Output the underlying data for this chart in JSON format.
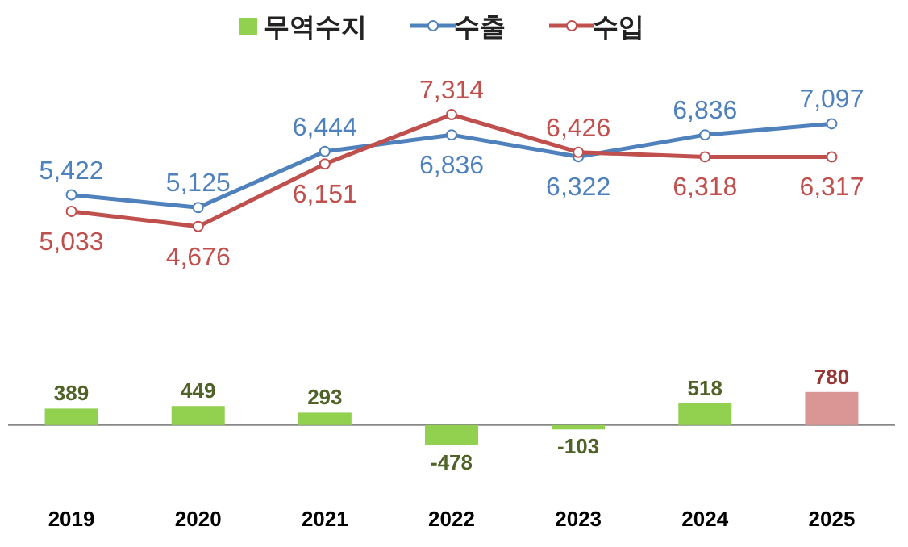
{
  "chart_data": {
    "type": "bar",
    "categories": [
      "2019",
      "2020",
      "2021",
      "2022",
      "2023",
      "2024",
      "2025"
    ],
    "series": [
      {
        "name": "무역수지",
        "color": "#92d050",
        "colors": [
          "#92d050",
          "#92d050",
          "#92d050",
          "#92d050",
          "#92d050",
          "#92d050",
          "#d99694"
        ],
        "values": [
          389,
          449,
          293,
          -478,
          -103,
          518,
          780
        ]
      },
      {
        "name": "수출",
        "type": "line",
        "color": "#4f81bd",
        "values": [
          5422,
          5125,
          6444,
          6836,
          6322,
          6836,
          7097
        ],
        "value_labels": [
          "5,422",
          "5,125",
          "6,444",
          "6,836",
          "6,322",
          "6,836",
          "7,097"
        ]
      },
      {
        "name": "수입",
        "type": "line",
        "color": "#c0504d",
        "values": [
          5033,
          4676,
          6151,
          7314,
          6426,
          6318,
          6317
        ],
        "value_labels": [
          "5,033",
          "4,676",
          "6,151",
          "7,314",
          "6,426",
          "6,318",
          "6,317"
        ]
      }
    ],
    "data_labels": true,
    "legend": "top",
    "marker": "circle"
  }
}
